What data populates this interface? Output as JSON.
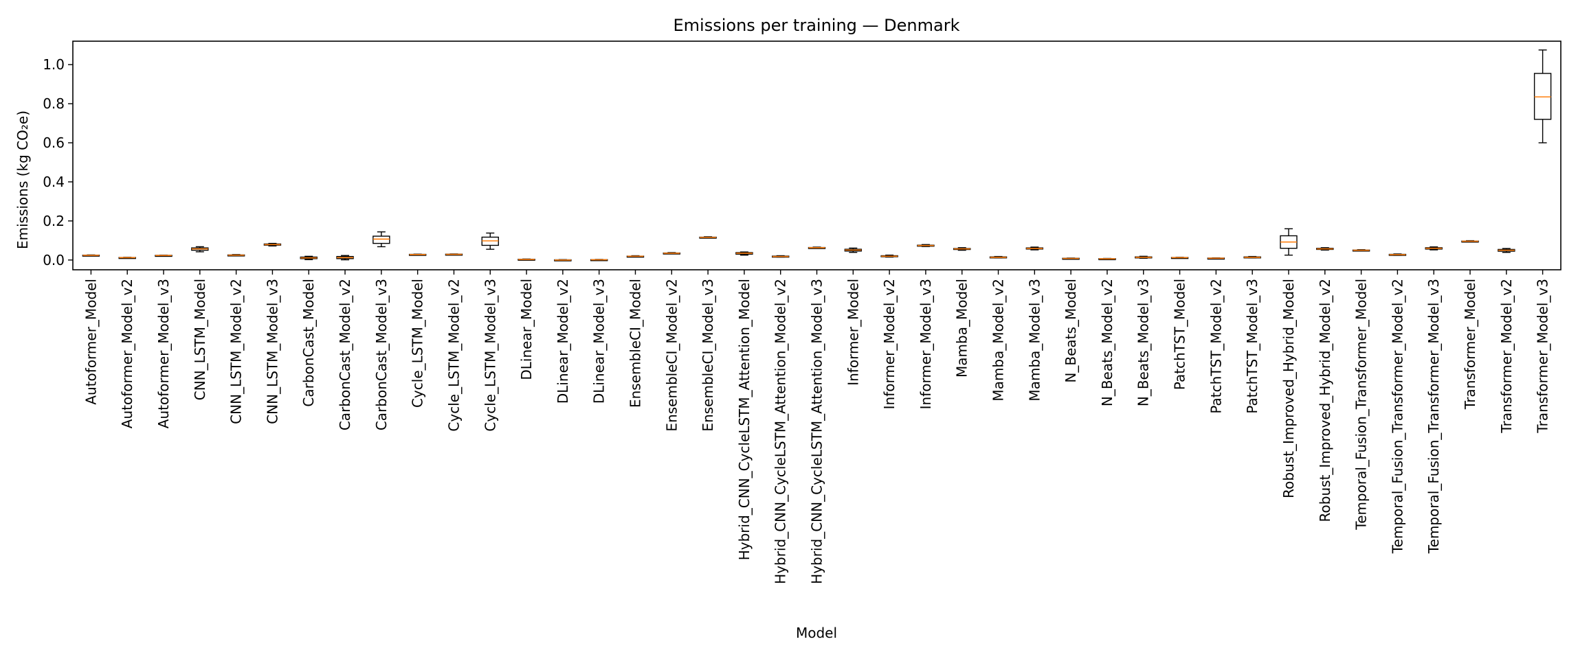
{
  "chart_data": {
    "type": "box",
    "title": "Emissions per training — Denmark",
    "xlabel": "Model",
    "ylabel": "Emissions (kg CO₂e)",
    "ylim": [
      -0.05,
      1.12
    ],
    "yticks": [
      0.0,
      0.2,
      0.4,
      0.6,
      0.8,
      1.0
    ],
    "ytick_labels": [
      "0.0",
      "0.2",
      "0.4",
      "0.6",
      "0.8",
      "1.0"
    ],
    "grid": false,
    "legend": "none",
    "colors": {
      "box": "#000000",
      "median": "#ff7f0e"
    },
    "categories": [
      "Autoformer_Model",
      "Autoformer_Model_v2",
      "Autoformer_Model_v3",
      "CNN_LSTM_Model",
      "CNN_LSTM_Model_v2",
      "CNN_LSTM_Model_v3",
      "CarbonCast_Model",
      "CarbonCast_Model_v2",
      "CarbonCast_Model_v3",
      "Cycle_LSTM_Model",
      "Cycle_LSTM_Model_v2",
      "Cycle_LSTM_Model_v3",
      "DLinear_Model",
      "DLinear_Model_v2",
      "DLinear_Model_v3",
      "EnsembleCI_Model",
      "EnsembleCI_Model_v2",
      "EnsembleCI_Model_v3",
      "Hybrid_CNN_CycleLSTM_Attention_Model",
      "Hybrid_CNN_CycleLSTM_Attention_Model_v2",
      "Hybrid_CNN_CycleLSTM_Attention_Model_v3",
      "Informer_Model",
      "Informer_Model_v2",
      "Informer_Model_v3",
      "Mamba_Model",
      "Mamba_Model_v2",
      "Mamba_Model_v3",
      "N_Beats_Model",
      "N_Beats_Model_v2",
      "N_Beats_Model_v3",
      "PatchTST_Model",
      "PatchTST_Model_v2",
      "PatchTST_Model_v3",
      "Robust_Improved_Hybrid_Model",
      "Robust_Improved_Hybrid_Model_v2",
      "Temporal_Fusion_Transformer_Model",
      "Temporal_Fusion_Transformer_Model_v2",
      "Temporal_Fusion_Transformer_Model_v3",
      "Transformer_Model",
      "Transformer_Model_v2",
      "Transformer_Model_v3"
    ],
    "boxes": [
      {
        "min": 0.021,
        "q1": 0.023,
        "median": 0.024,
        "q3": 0.025,
        "max": 0.026
      },
      {
        "min": 0.01,
        "q1": 0.011,
        "median": 0.012,
        "q3": 0.013,
        "max": 0.014
      },
      {
        "min": 0.021,
        "q1": 0.022,
        "median": 0.023,
        "q3": 0.024,
        "max": 0.025
      },
      {
        "min": 0.042,
        "q1": 0.05,
        "median": 0.057,
        "q3": 0.062,
        "max": 0.068
      },
      {
        "min": 0.022,
        "q1": 0.024,
        "median": 0.025,
        "q3": 0.026,
        "max": 0.028
      },
      {
        "min": 0.072,
        "q1": 0.076,
        "median": 0.079,
        "q3": 0.082,
        "max": 0.085
      },
      {
        "min": 0.002,
        "q1": 0.007,
        "median": 0.011,
        "q3": 0.015,
        "max": 0.019
      },
      {
        "min": 0.001,
        "q1": 0.007,
        "median": 0.012,
        "q3": 0.018,
        "max": 0.023
      },
      {
        "min": 0.068,
        "q1": 0.085,
        "median": 0.107,
        "q3": 0.122,
        "max": 0.144
      },
      {
        "min": 0.025,
        "q1": 0.027,
        "median": 0.028,
        "q3": 0.029,
        "max": 0.03
      },
      {
        "min": 0.027,
        "q1": 0.028,
        "median": 0.029,
        "q3": 0.03,
        "max": 0.031
      },
      {
        "min": 0.055,
        "q1": 0.075,
        "median": 0.098,
        "q3": 0.117,
        "max": 0.138
      },
      {
        "min": 0.001,
        "q1": 0.002,
        "median": 0.003,
        "q3": 0.004,
        "max": 0.005
      },
      {
        "min": -0.002,
        "q1": -0.001,
        "median": 0.0,
        "q3": 0.001,
        "max": 0.002
      },
      {
        "min": -0.001,
        "q1": 0.0,
        "median": 0.001,
        "q3": 0.002,
        "max": 0.003
      },
      {
        "min": 0.016,
        "q1": 0.018,
        "median": 0.019,
        "q3": 0.02,
        "max": 0.022
      },
      {
        "min": 0.032,
        "q1": 0.034,
        "median": 0.035,
        "q3": 0.036,
        "max": 0.038
      },
      {
        "min": 0.113,
        "q1": 0.115,
        "median": 0.116,
        "q3": 0.117,
        "max": 0.119
      },
      {
        "min": 0.025,
        "q1": 0.03,
        "median": 0.035,
        "q3": 0.038,
        "max": 0.041
      },
      {
        "min": 0.015,
        "q1": 0.017,
        "median": 0.018,
        "q3": 0.02,
        "max": 0.022
      },
      {
        "min": 0.06,
        "q1": 0.062,
        "median": 0.063,
        "q3": 0.064,
        "max": 0.066
      },
      {
        "min": 0.039,
        "q1": 0.046,
        "median": 0.051,
        "q3": 0.055,
        "max": 0.061
      },
      {
        "min": 0.015,
        "q1": 0.017,
        "median": 0.019,
        "q3": 0.022,
        "max": 0.025
      },
      {
        "min": 0.069,
        "q1": 0.072,
        "median": 0.074,
        "q3": 0.076,
        "max": 0.079
      },
      {
        "min": 0.05,
        "q1": 0.054,
        "median": 0.057,
        "q3": 0.059,
        "max": 0.063
      },
      {
        "min": 0.011,
        "q1": 0.013,
        "median": 0.014,
        "q3": 0.016,
        "max": 0.018
      },
      {
        "min": 0.052,
        "q1": 0.056,
        "median": 0.059,
        "q3": 0.062,
        "max": 0.066
      },
      {
        "min": 0.006,
        "q1": 0.007,
        "median": 0.008,
        "q3": 0.009,
        "max": 0.01
      },
      {
        "min": 0.004,
        "q1": 0.005,
        "median": 0.006,
        "q3": 0.007,
        "max": 0.008
      },
      {
        "min": 0.009,
        "q1": 0.012,
        "median": 0.014,
        "q3": 0.016,
        "max": 0.019
      },
      {
        "min": 0.01,
        "q1": 0.011,
        "median": 0.012,
        "q3": 0.013,
        "max": 0.014
      },
      {
        "min": 0.007,
        "q1": 0.008,
        "median": 0.009,
        "q3": 0.01,
        "max": 0.011
      },
      {
        "min": 0.011,
        "q1": 0.013,
        "median": 0.014,
        "q3": 0.016,
        "max": 0.018
      },
      {
        "min": 0.025,
        "q1": 0.06,
        "median": 0.092,
        "q3": 0.124,
        "max": 0.16
      },
      {
        "min": 0.051,
        "q1": 0.054,
        "median": 0.057,
        "q3": 0.06,
        "max": 0.063
      },
      {
        "min": 0.048,
        "q1": 0.049,
        "median": 0.05,
        "q3": 0.051,
        "max": 0.053
      },
      {
        "min": 0.024,
        "q1": 0.026,
        "median": 0.027,
        "q3": 0.029,
        "max": 0.031
      },
      {
        "min": 0.052,
        "q1": 0.056,
        "median": 0.06,
        "q3": 0.063,
        "max": 0.067
      },
      {
        "min": 0.093,
        "q1": 0.095,
        "median": 0.096,
        "q3": 0.097,
        "max": 0.099
      },
      {
        "min": 0.039,
        "q1": 0.045,
        "median": 0.05,
        "q3": 0.054,
        "max": 0.059
      },
      {
        "min": 0.6,
        "q1": 0.72,
        "median": 0.835,
        "q3": 0.955,
        "max": 1.075
      }
    ]
  }
}
